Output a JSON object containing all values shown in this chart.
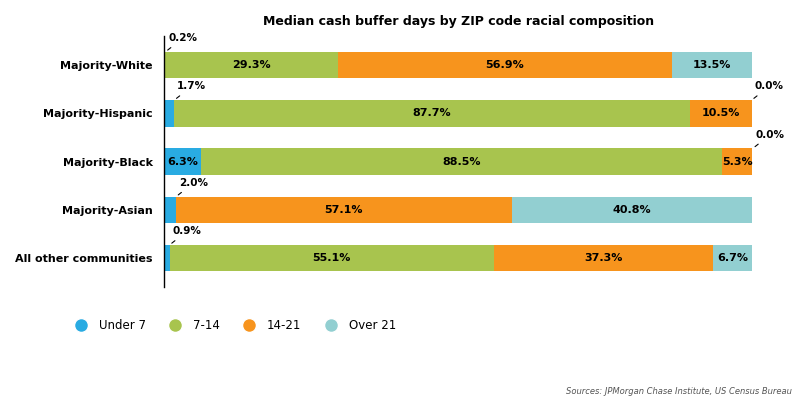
{
  "title": "Median cash buffer days by ZIP code racial composition",
  "categories": [
    "Majority-White",
    "Majority-Hispanic",
    "Majority-Black",
    "Majority-Asian",
    "All other communities"
  ],
  "segments": {
    "Under 7": [
      0.2,
      1.7,
      6.3,
      2.0,
      0.9
    ],
    "7-14": [
      29.3,
      87.7,
      88.5,
      0.0,
      55.1
    ],
    "14-21": [
      56.9,
      10.5,
      5.3,
      57.1,
      37.3
    ],
    "Over 21": [
      13.5,
      0.0,
      0.0,
      40.8,
      6.7
    ]
  },
  "colors": {
    "Under 7": "#29abe2",
    "7-14": "#a8c44e",
    "14-21": "#f7941d",
    "Over 21": "#92cfd1"
  },
  "legend_order": [
    "Under 7",
    "7-14",
    "14-21",
    "Over 21"
  ],
  "source": "Sources: JPMorgan Chase Institute, US Census Bureau",
  "figsize": [
    8.0,
    4.0
  ],
  "dpi": 100,
  "bar_height": 0.55,
  "label_fontsize": 8,
  "outside_label_fontsize": 7.5,
  "title_fontsize": 9,
  "bg_color": "#ffffff"
}
